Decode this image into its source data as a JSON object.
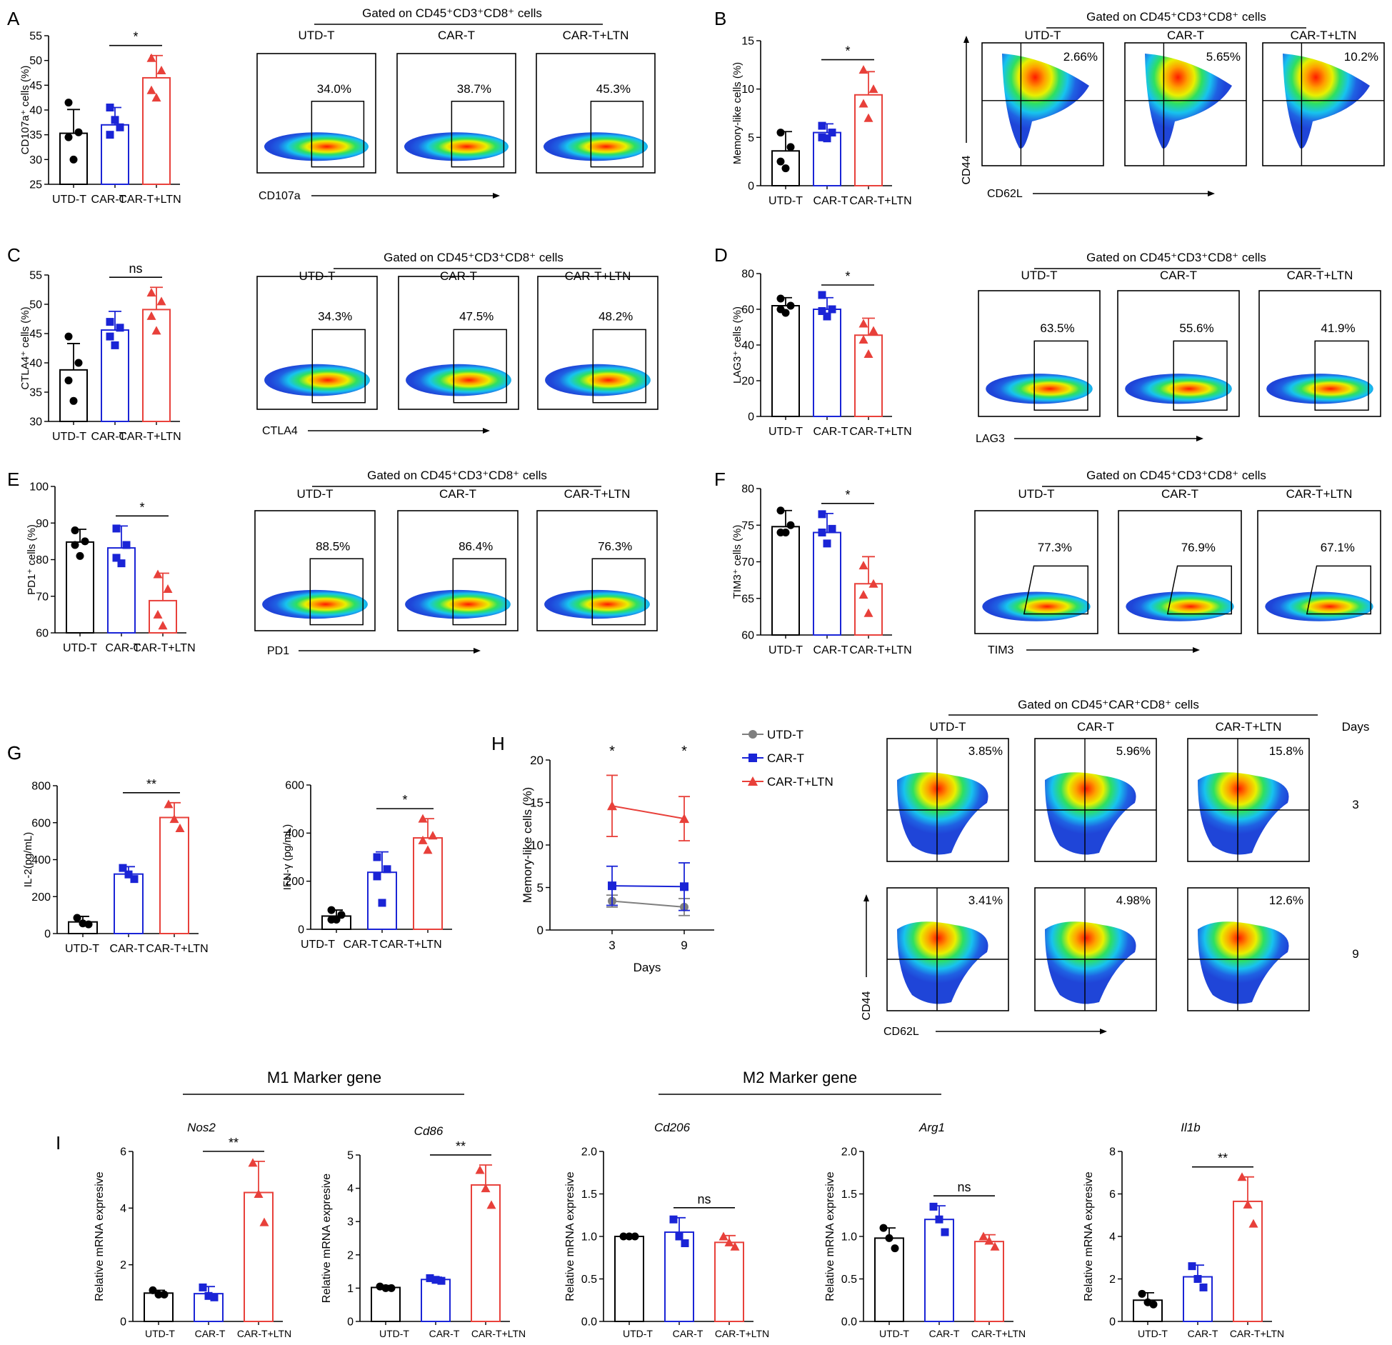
{
  "colors": {
    "utd": "#000000",
    "car": "#1a24d6",
    "ltn": "#e8403a",
    "gray": "#7f7f7f"
  },
  "groups": [
    "UTD-T",
    "CAR-T",
    "CAR-T+LTN"
  ],
  "flow_gate_label": "Gated on CD45⁺CD3⁺CD8⁺ cells",
  "flow_gate_label_h": "Gated on CD45⁺CAR⁺CD8⁺ cells",
  "chart_data": [
    {
      "id": "A",
      "type": "bar",
      "panel": "A",
      "ylabel": "CD107a⁺ cells (%)",
      "ylim": [
        25,
        55
      ],
      "ticks": [
        25,
        30,
        35,
        40,
        45,
        50,
        55
      ],
      "categories": [
        "UTD-T",
        "CAR-T",
        "CAR-T+LTN"
      ],
      "values": [
        35.3,
        37.0,
        46.5
      ],
      "sd": [
        4.8,
        3.5,
        4.5
      ],
      "points": [
        [
          41.5,
          35.5,
          34.5,
          30
        ],
        [
          40.5,
          36.5,
          35,
          38
        ],
        [
          50.5,
          48,
          44,
          42.5
        ]
      ],
      "sig": "*",
      "sig_pair": [
        1,
        2
      ]
    },
    {
      "id": "B",
      "type": "bar",
      "panel": "B",
      "ylabel": "Memory-like cells (%)",
      "ylim": [
        0,
        15
      ],
      "ticks": [
        0,
        5,
        10,
        15
      ],
      "categories": [
        "UTD-T",
        "CAR-T",
        "CAR-T+LTN"
      ],
      "values": [
        3.6,
        5.5,
        9.4
      ],
      "sd": [
        2.0,
        0.9,
        2.4
      ],
      "points": [
        [
          5.5,
          4,
          2.5,
          1.8
        ],
        [
          6.2,
          5.5,
          5,
          4.9
        ],
        [
          12.0,
          10,
          8.5,
          7
        ]
      ],
      "sig": "*",
      "sig_pair": [
        1,
        2
      ]
    },
    {
      "id": "C",
      "type": "bar",
      "panel": "C",
      "ylabel": "CTLA4⁺ cells (%)",
      "ylim": [
        30,
        55
      ],
      "ticks": [
        30,
        35,
        40,
        45,
        50,
        55
      ],
      "categories": [
        "UTD-T",
        "CAR-T",
        "CAR-T+LTN"
      ],
      "values": [
        38.8,
        45.6,
        49.1
      ],
      "sd": [
        4.5,
        3.2,
        3.8
      ],
      "points": [
        [
          44.5,
          40,
          37,
          33.5
        ],
        [
          47,
          46,
          44.5,
          43
        ],
        [
          52,
          50.5,
          48,
          45.5
        ]
      ],
      "sig": "ns",
      "sig_pair": [
        1,
        2
      ]
    },
    {
      "id": "D",
      "type": "bar",
      "panel": "D",
      "ylabel": "LAG3⁺ cells (%)",
      "ylim": [
        0,
        80
      ],
      "ticks": [
        0,
        20,
        40,
        60,
        80
      ],
      "categories": [
        "UTD-T",
        "CAR-T",
        "CAR-T+LTN"
      ],
      "values": [
        62,
        60,
        45.5
      ],
      "sd": [
        4.5,
        6.5,
        9.5
      ],
      "points": [
        [
          66,
          62,
          60,
          58
        ],
        [
          68,
          60,
          59,
          56
        ],
        [
          52,
          48,
          43,
          35
        ]
      ],
      "sig": "*",
      "sig_pair": [
        1,
        2
      ]
    },
    {
      "id": "E",
      "type": "bar",
      "panel": "E",
      "ylabel": "PD1⁺ cells (%)",
      "ylim": [
        60,
        100
      ],
      "ticks": [
        60,
        70,
        80,
        90,
        100
      ],
      "categories": [
        "UTD-T",
        "CAR-T",
        "CAR-T+LTN"
      ],
      "values": [
        84.8,
        83.2,
        68.8
      ],
      "sd": [
        3.5,
        6.0,
        7.5
      ],
      "points": [
        [
          88,
          85,
          84,
          81
        ],
        [
          88.5,
          84,
          80.5,
          79
        ],
        [
          76,
          72,
          65,
          62
        ]
      ],
      "sig": "*",
      "sig_pair": [
        1,
        2
      ]
    },
    {
      "id": "F",
      "type": "bar",
      "panel": "F",
      "ylabel": "TIM3⁺ cells (%)",
      "ylim": [
        60,
        80
      ],
      "ticks": [
        60,
        65,
        70,
        75,
        80
      ],
      "categories": [
        "UTD-T",
        "CAR-T",
        "CAR-T+LTN"
      ],
      "values": [
        74.8,
        74.0,
        67.0
      ],
      "sd": [
        2.2,
        2.6,
        3.7
      ],
      "points": [
        [
          77,
          75,
          74,
          74
        ],
        [
          76.5,
          74.5,
          74,
          72.5
        ],
        [
          69.5,
          67,
          65.5,
          63
        ]
      ],
      "sig": "*",
      "sig_pair": [
        1,
        2
      ]
    },
    {
      "id": "G1",
      "type": "bar",
      "panel": "G",
      "ylabel": "IL-2(pg/mL)",
      "ylim": [
        0,
        800
      ],
      "ticks": [
        0,
        200,
        400,
        600,
        800
      ],
      "categories": [
        "UTD-T",
        "CAR-T",
        "CAR-T+LTN"
      ],
      "values": [
        63,
        322,
        628
      ],
      "sd": [
        30,
        40,
        80
      ],
      "points": [
        [
          85,
          55,
          50
        ],
        [
          355,
          320,
          295
        ],
        [
          700,
          620,
          570
        ]
      ],
      "sig": "**",
      "sig_pair": [
        1,
        2
      ]
    },
    {
      "id": "G2",
      "type": "bar",
      "panel": "",
      "ylabel": "IFN-γ (pg/mL)",
      "ylim": [
        0,
        600
      ],
      "ticks": [
        0,
        200,
        400,
        600
      ],
      "categories": [
        "UTD-T",
        "CAR-T",
        "CAR-T+LTN"
      ],
      "values": [
        55,
        237,
        380
      ],
      "sd": [
        25,
        85,
        80
      ],
      "points": [
        [
          80,
          60,
          40,
          40
        ],
        [
          300,
          250,
          220,
          110
        ],
        [
          460,
          390,
          370,
          330
        ]
      ],
      "sig": "*",
      "sig_pair": [
        1,
        2
      ]
    },
    {
      "id": "H",
      "type": "line",
      "panel": "H",
      "ylabel": "Memory-like cells (%)",
      "xlabel": "Days",
      "x": [
        3,
        9
      ],
      "ylim": [
        0,
        20
      ],
      "ticks": [
        0,
        5,
        10,
        15,
        20
      ],
      "series": [
        {
          "name": "UTD-T",
          "values": [
            3.4,
            2.7
          ],
          "sd": [
            0.7,
            1.0
          ]
        },
        {
          "name": "CAR-T",
          "values": [
            5.2,
            5.1
          ],
          "sd": [
            2.3,
            2.8
          ]
        },
        {
          "name": "CAR-T+LTN",
          "values": [
            14.6,
            13.1
          ],
          "sd": [
            3.6,
            2.6
          ]
        }
      ],
      "sig": [
        "*",
        "*"
      ]
    },
    {
      "id": "I1",
      "type": "bar",
      "panel": "I",
      "title": "Nos2",
      "ylabel": "Relative mRNA expresive",
      "ylim": [
        0,
        6
      ],
      "ticks": [
        0,
        2,
        4,
        6
      ],
      "categories": [
        "UTD-T",
        "CAR-T",
        "CAR-T+LTN"
      ],
      "values": [
        1.0,
        0.98,
        4.55
      ],
      "sd": [
        0.1,
        0.25,
        1.1
      ],
      "points": [
        [
          1.1,
          0.95,
          0.95
        ],
        [
          1.2,
          0.9,
          0.85
        ],
        [
          5.6,
          4.5,
          3.5
        ]
      ],
      "sig": "**",
      "sig_pair": [
        1,
        2
      ]
    },
    {
      "id": "I2",
      "type": "bar",
      "panel": "",
      "title": "Cd86",
      "ylabel": "Relative mRNA expresive",
      "ylim": [
        0,
        5
      ],
      "ticks": [
        0,
        1,
        2,
        3,
        4,
        5
      ],
      "categories": [
        "UTD-T",
        "CAR-T",
        "CAR-T+LTN"
      ],
      "values": [
        1.02,
        1.26,
        4.1
      ],
      "sd": [
        0.06,
        0.07,
        0.6
      ],
      "points": [
        [
          1.05,
          1.0,
          1.0
        ],
        [
          1.3,
          1.25,
          1.22
        ],
        [
          4.55,
          4.0,
          3.5
        ]
      ],
      "sig": "**",
      "sig_pair": [
        1,
        2
      ]
    },
    {
      "id": "I3",
      "type": "bar",
      "panel": "",
      "title": "Cd206",
      "ylabel": "Relative mRNA expresive",
      "ylim": [
        0,
        2
      ],
      "ticks": [
        "0.0",
        "0.5",
        "1.0",
        "1.5",
        "2.0"
      ],
      "categories": [
        "UTD-T",
        "CAR-T",
        "CAR-T+LTN"
      ],
      "values": [
        1.0,
        1.05,
        0.93
      ],
      "sd": [
        0.02,
        0.17,
        0.08
      ],
      "points": [
        [
          1.0,
          1.0,
          1.0
        ],
        [
          1.2,
          1.0,
          0.92
        ],
        [
          1.0,
          0.93,
          0.88
        ]
      ],
      "sig": "ns",
      "sig_pair": [
        1,
        2
      ]
    },
    {
      "id": "I4",
      "type": "bar",
      "panel": "",
      "title": "Arg1",
      "ylabel": "Relative mRNA expresive",
      "ylim": [
        0,
        2
      ],
      "ticks": [
        "0.0",
        "0.5",
        "1.0",
        "1.5",
        "2.0"
      ],
      "categories": [
        "UTD-T",
        "CAR-T",
        "CAR-T+LTN"
      ],
      "values": [
        0.98,
        1.2,
        0.94
      ],
      "sd": [
        0.12,
        0.16,
        0.08
      ],
      "points": [
        [
          1.1,
          0.98,
          0.86
        ],
        [
          1.35,
          1.2,
          1.05
        ],
        [
          1.0,
          0.95,
          0.88
        ]
      ],
      "sig": "ns",
      "sig_pair": [
        1,
        2
      ]
    },
    {
      "id": "I5",
      "type": "bar",
      "panel": "",
      "title": "Il1b",
      "ylabel": "Relative mRNA expresive",
      "ylim": [
        0,
        8
      ],
      "ticks": [
        0,
        2,
        4,
        6,
        8
      ],
      "categories": [
        "UTD-T",
        "CAR-T",
        "CAR-T+LTN"
      ],
      "values": [
        1.0,
        2.1,
        5.65
      ],
      "sd": [
        0.35,
        0.55,
        1.15
      ],
      "points": [
        [
          1.3,
          0.9,
          0.8
        ],
        [
          2.6,
          2.0,
          1.6
        ],
        [
          6.8,
          5.5,
          4.6
        ]
      ],
      "sig": "**",
      "sig_pair": [
        1,
        2
      ]
    }
  ],
  "flow_panels": [
    {
      "id": "A",
      "axis_x": "CD107a",
      "gate": "rect",
      "pcts": [
        "34.0%",
        "38.7%",
        "45.3%"
      ]
    },
    {
      "id": "B",
      "axis_x": "CD62L",
      "axis_y": "CD44",
      "gate": "quad",
      "pcts": [
        "2.66%",
        "5.65%",
        "10.2%"
      ]
    },
    {
      "id": "C",
      "axis_x": "CTLA4",
      "gate": "rect",
      "pcts": [
        "34.3%",
        "47.5%",
        "48.2%"
      ]
    },
    {
      "id": "D",
      "axis_x": "LAG3",
      "gate": "rect",
      "pcts": [
        "63.5%",
        "55.6%",
        "41.9%"
      ]
    },
    {
      "id": "E",
      "axis_x": "PD1",
      "gate": "rect",
      "pcts": [
        "88.5%",
        "86.4%",
        "76.3%"
      ]
    },
    {
      "id": "F",
      "axis_x": "TIM3",
      "gate": "poly",
      "pcts": [
        "77.3%",
        "76.9%",
        "67.1%"
      ]
    },
    {
      "id": "H3",
      "gate": "quad",
      "pcts": [
        "3.85%",
        "5.96%",
        "15.8%"
      ]
    },
    {
      "id": "H9",
      "axis_x": "CD62L",
      "axis_y": "CD44",
      "gate": "quad",
      "pcts": [
        "3.41%",
        "4.98%",
        "12.6%"
      ]
    }
  ],
  "h_days_label": "Days",
  "h_rows": [
    "3",
    "9"
  ],
  "m1_label": "M1 Marker gene",
  "m2_label": "M2 Marker gene"
}
